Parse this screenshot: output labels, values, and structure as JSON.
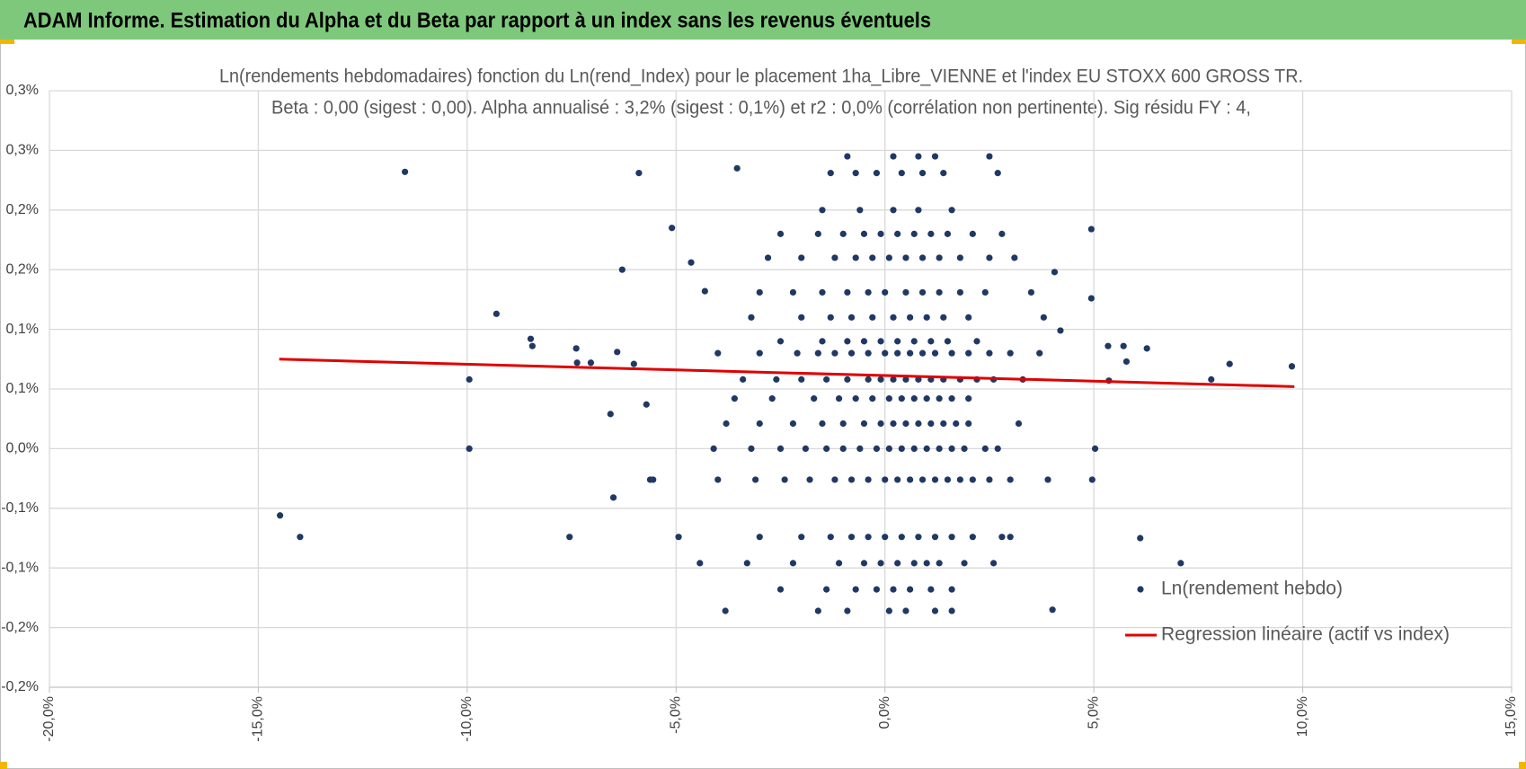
{
  "header": {
    "title": "ADAM Informe. Estimation du Alpha et du Beta par rapport à un index sans les revenus éventuels"
  },
  "chart_data": {
    "type": "scatter",
    "title": "Ln(rendements hebdomadaires) fonction du Ln(rend_Index) pour le placement 1ha_Libre_VIENNE et l'index EU STOXX 600 GROSS TR.",
    "subtitle": "Beta : 0,00 (sigest : 0,00).  Alpha annualisé : 3,2% (sigest : 0,1%) et r2 : 0,0% (corrélation non pertinente). Sig résidu FY : 4,",
    "xlim": [
      -20,
      15
    ],
    "xticks": [
      {
        "value": -20,
        "label": "-20,0%"
      },
      {
        "value": -15,
        "label": "-15,0%"
      },
      {
        "value": -10,
        "label": "-10,0%"
      },
      {
        "value": -5,
        "label": "-5,0%"
      },
      {
        "value": 0,
        "label": "0,0%"
      },
      {
        "value": 5,
        "label": "5,0%"
      },
      {
        "value": 10,
        "label": "10,0%"
      },
      {
        "value": 15,
        "label": "15,0%"
      }
    ],
    "ylim": [
      -0.2,
      0.3
    ],
    "yticks": [
      {
        "value": -0.2,
        "label": "-0,2%"
      },
      {
        "value": -0.15,
        "label": "-0,2%"
      },
      {
        "value": -0.1,
        "label": "-0,1%"
      },
      {
        "value": -0.05,
        "label": "-0,1%"
      },
      {
        "value": 0,
        "label": "0,0%"
      },
      {
        "value": 0.05,
        "label": "0,1%"
      },
      {
        "value": 0.1,
        "label": "0,1%"
      },
      {
        "value": 0.15,
        "label": "0,2%"
      },
      {
        "value": 0.2,
        "label": "0,2%"
      },
      {
        "value": 0.25,
        "label": "0,3%"
      },
      {
        "value": 0.3,
        "label": "0,3%"
      }
    ],
    "grid": true,
    "legend": "bottom-right",
    "series": [
      {
        "name": "Ln(rendement hebdo)",
        "color": "#203864",
        "style": "marker",
        "x": [
          -11.49,
          -14.48,
          -14.0,
          -9.95,
          -9.95,
          -9.3,
          -8.48,
          -8.44,
          -7.55,
          -7.39,
          -7.37,
          -7.04,
          -6.57,
          -6.5,
          -6.41,
          -6.29,
          -6.01,
          -5.89,
          -5.71,
          -5.62,
          -5.55,
          -5.1,
          -4.94,
          -4.64,
          -4.43,
          -4.31,
          -3.82,
          -3.54,
          4.06,
          4.2,
          4.01,
          4.94,
          4.94,
          5.03,
          4.96,
          5.36,
          5.34,
          5.71,
          5.78,
          6.11,
          6.27,
          7.08,
          7.81,
          8.25,
          9.74,
          -4.1,
          -3.2,
          -2.5,
          -1.9,
          -1.4,
          -1.0,
          -0.6,
          -0.2,
          0.1,
          0.4,
          0.7,
          1.0,
          1.3,
          1.6,
          1.9,
          2.4,
          2.7,
          -4.0,
          -3.1,
          -2.4,
          -1.8,
          -1.2,
          -0.8,
          -0.4,
          0.0,
          0.3,
          0.6,
          0.9,
          1.2,
          1.5,
          1.8,
          2.1,
          2.5,
          3.0,
          3.9,
          -3.8,
          -3.0,
          -2.2,
          -1.5,
          -1.0,
          -0.5,
          -0.1,
          0.2,
          0.5,
          0.8,
          1.1,
          1.4,
          1.7,
          2.0,
          3.2,
          -3.6,
          -2.7,
          -1.7,
          -1.1,
          -0.7,
          -0.3,
          0.1,
          0.4,
          0.7,
          1.0,
          1.3,
          1.6,
          2.0,
          -3.4,
          -2.6,
          -2.0,
          -1.4,
          -0.9,
          -0.4,
          -0.1,
          0.2,
          0.5,
          0.8,
          1.1,
          1.4,
          1.8,
          2.2,
          2.6,
          3.3,
          -4.0,
          -3.0,
          -2.1,
          -1.6,
          -1.2,
          -0.8,
          -0.4,
          0.0,
          0.3,
          0.6,
          0.9,
          1.2,
          1.6,
          2.0,
          2.5,
          3.0,
          3.7,
          -2.5,
          -1.5,
          -0.9,
          -0.5,
          -0.1,
          0.3,
          0.7,
          1.1,
          1.5,
          2.2,
          -3.2,
          -2.0,
          -1.3,
          -0.8,
          -0.3,
          0.2,
          0.6,
          1.0,
          1.4,
          2.0,
          3.8,
          -3.0,
          -2.2,
          -1.5,
          -0.9,
          -0.4,
          0.0,
          0.5,
          0.9,
          1.3,
          1.8,
          2.4,
          3.5,
          -2.8,
          -2.0,
          -1.2,
          -0.7,
          -0.3,
          0.1,
          0.5,
          0.9,
          1.3,
          1.8,
          2.5,
          3.1,
          -2.5,
          -1.6,
          -1.0,
          -0.5,
          -0.1,
          0.3,
          0.7,
          1.1,
          1.5,
          2.1,
          2.8,
          -1.5,
          -0.6,
          0.2,
          0.8,
          1.6,
          -1.3,
          -0.7,
          -0.2,
          0.4,
          0.9,
          1.4,
          2.7,
          -0.9,
          0.2,
          0.8,
          1.2,
          2.5,
          -3.0,
          -2.0,
          -1.3,
          -0.8,
          -0.4,
          0.0,
          0.4,
          0.8,
          1.2,
          1.6,
          2.1,
          2.8,
          3.0,
          -3.3,
          -2.2,
          -1.1,
          -0.5,
          -0.1,
          0.3,
          0.7,
          1.0,
          1.3,
          1.9,
          2.6,
          -2.5,
          -1.4,
          -0.7,
          -0.2,
          0.2,
          0.6,
          1.1,
          1.6,
          -1.6,
          -0.9,
          0.1,
          0.5,
          1.2,
          1.6
        ],
        "values": [
          0.232,
          -0.056,
          -0.074,
          0.058,
          0.0,
          0.113,
          0.092,
          0.086,
          -0.074,
          0.084,
          0.072,
          0.072,
          0.029,
          -0.041,
          0.081,
          0.15,
          0.071,
          0.231,
          0.037,
          -0.026,
          -0.026,
          0.185,
          -0.074,
          0.156,
          -0.096,
          0.132,
          -0.136,
          0.235,
          0.148,
          0.099,
          -0.135,
          0.184,
          0.126,
          0.0,
          -0.026,
          0.057,
          0.086,
          0.086,
          0.073,
          -0.075,
          0.084,
          -0.096,
          0.058,
          0.071,
          0.069,
          0,
          0,
          0,
          0,
          0,
          0,
          0,
          0,
          0,
          0,
          0,
          0,
          0,
          0,
          0,
          0,
          0,
          -0.026,
          -0.026,
          -0.026,
          -0.026,
          -0.026,
          -0.026,
          -0.026,
          -0.026,
          -0.026,
          -0.026,
          -0.026,
          -0.026,
          -0.026,
          -0.026,
          -0.026,
          -0.026,
          -0.026,
          -0.026,
          0.021,
          0.021,
          0.021,
          0.021,
          0.021,
          0.021,
          0.021,
          0.021,
          0.021,
          0.021,
          0.021,
          0.021,
          0.021,
          0.021,
          0.021,
          0.042,
          0.042,
          0.042,
          0.042,
          0.042,
          0.042,
          0.042,
          0.042,
          0.042,
          0.042,
          0.042,
          0.042,
          0.042,
          0.058,
          0.058,
          0.058,
          0.058,
          0.058,
          0.058,
          0.058,
          0.058,
          0.058,
          0.058,
          0.058,
          0.058,
          0.058,
          0.058,
          0.058,
          0.058,
          0.08,
          0.08,
          0.08,
          0.08,
          0.08,
          0.08,
          0.08,
          0.08,
          0.08,
          0.08,
          0.08,
          0.08,
          0.08,
          0.08,
          0.08,
          0.08,
          0.08,
          0.09,
          0.09,
          0.09,
          0.09,
          0.09,
          0.09,
          0.09,
          0.09,
          0.09,
          0.09,
          0.11,
          0.11,
          0.11,
          0.11,
          0.11,
          0.11,
          0.11,
          0.11,
          0.11,
          0.11,
          0.11,
          0.131,
          0.131,
          0.131,
          0.131,
          0.131,
          0.131,
          0.131,
          0.131,
          0.131,
          0.131,
          0.131,
          0.131,
          0.16,
          0.16,
          0.16,
          0.16,
          0.16,
          0.16,
          0.16,
          0.16,
          0.16,
          0.16,
          0.16,
          0.16,
          0.18,
          0.18,
          0.18,
          0.18,
          0.18,
          0.18,
          0.18,
          0.18,
          0.18,
          0.18,
          0.18,
          0.2,
          0.2,
          0.2,
          0.2,
          0.2,
          0.231,
          0.231,
          0.231,
          0.231,
          0.231,
          0.231,
          0.231,
          0.245,
          0.245,
          0.245,
          0.245,
          0.245,
          -0.074,
          -0.074,
          -0.074,
          -0.074,
          -0.074,
          -0.074,
          -0.074,
          -0.074,
          -0.074,
          -0.074,
          -0.074,
          -0.074,
          -0.074,
          -0.096,
          -0.096,
          -0.096,
          -0.096,
          -0.096,
          -0.096,
          -0.096,
          -0.096,
          -0.096,
          -0.096,
          -0.096,
          -0.118,
          -0.118,
          -0.118,
          -0.118,
          -0.118,
          -0.118,
          -0.118,
          -0.118,
          -0.136,
          -0.136,
          -0.136,
          -0.136,
          -0.136,
          -0.136
        ]
      },
      {
        "name": "Regression linéaire (actif vs index)",
        "color": "#e00000",
        "style": "line",
        "x": [
          -14.5,
          9.8
        ],
        "values": [
          0.075,
          0.052
        ]
      }
    ]
  }
}
